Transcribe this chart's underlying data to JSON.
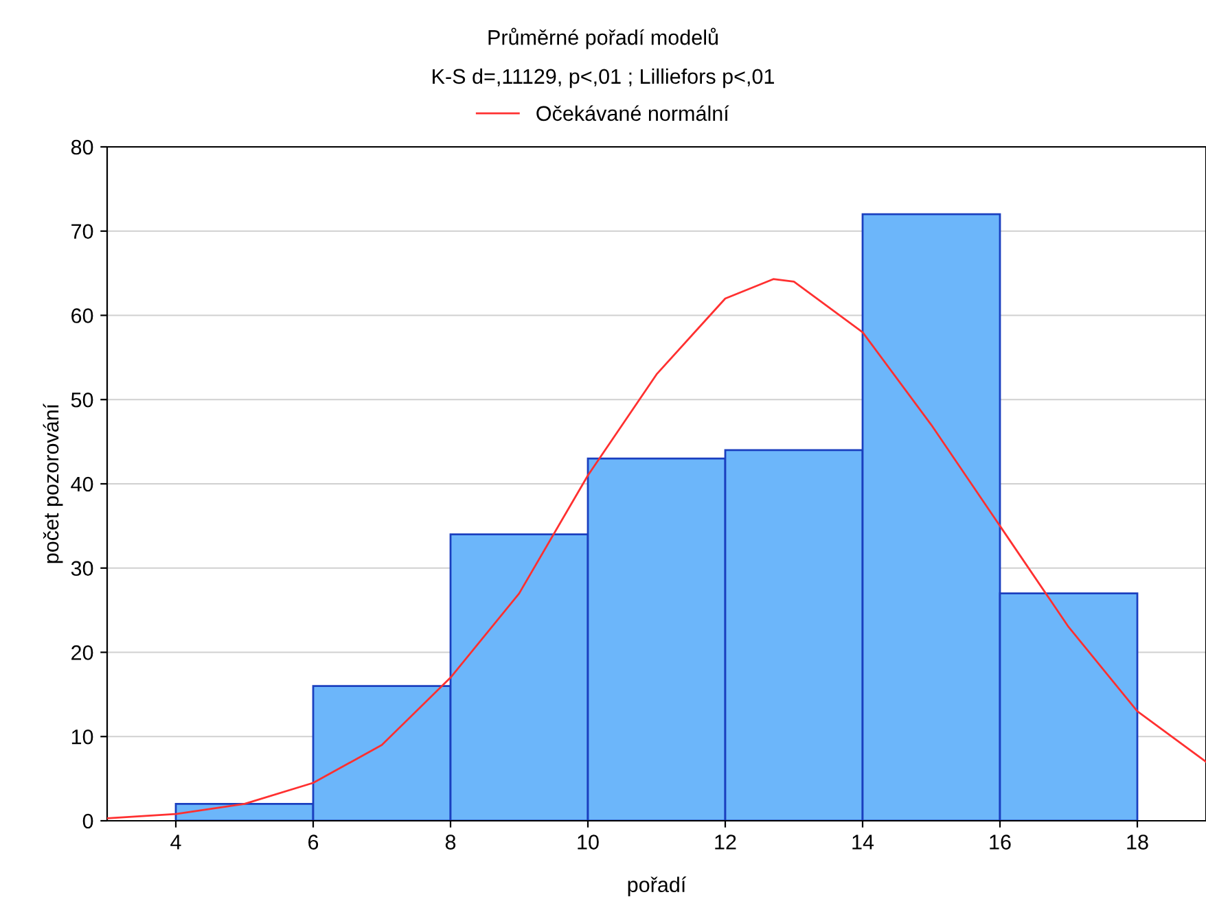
{
  "chart_data": {
    "type": "histogram",
    "title": "Průměrné pořadí modelů",
    "subtitle": "K-S d=,11129, p<,01 ; Lilliefors p<,01",
    "xlabel": "pořadí",
    "ylabel": "počet pozorování",
    "bins": [
      4,
      6,
      8,
      10,
      12,
      14,
      16,
      18
    ],
    "values": [
      2,
      16,
      34,
      43,
      44,
      72,
      27
    ],
    "color": "#6cb6fa",
    "series": [
      {
        "name": "Očekávané normální",
        "type": "line",
        "color": "#ff3030",
        "x": [
          3,
          4,
          5,
          6,
          7,
          8,
          9,
          10,
          11,
          12,
          12.7,
          13,
          14,
          15,
          16,
          17,
          18,
          19
        ],
        "values": [
          0.3,
          0.8,
          2,
          4.5,
          9,
          17,
          27,
          41,
          53,
          62,
          64.3,
          64,
          58,
          47,
          35,
          23,
          13,
          7
        ]
      }
    ],
    "xlim": [
      3,
      19
    ],
    "xticks": [
      4,
      6,
      8,
      10,
      12,
      14,
      16,
      18
    ],
    "ylim": [
      0,
      80
    ],
    "yticks": [
      0,
      10,
      20,
      30,
      40,
      50,
      60,
      70,
      80
    ],
    "grid": "y",
    "legend": "top"
  }
}
